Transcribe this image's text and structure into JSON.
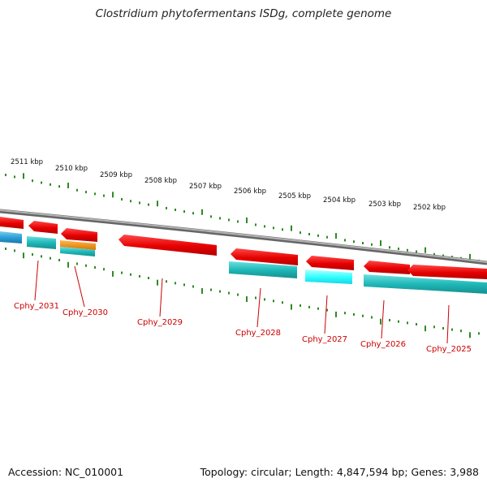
{
  "title": "Clostridium phytofermentans ISDg, complete genome",
  "footer": {
    "accession": "Accession: NC_010001",
    "summary": "Topology: circular; Length: 4,847,594 bp; Genes: 3,988"
  },
  "ruler": {
    "labels": [
      "2511 kbp",
      "2510 kbp",
      "2509 kbp",
      "2508 kbp",
      "2507 kbp",
      "2506 kbp",
      "2505 kbp",
      "2504 kbp",
      "2503 kbp",
      "2502 kbp"
    ],
    "tick_color": "#2e8b23"
  },
  "backbone_color": "#8c8c8c",
  "gene_labels": [
    "Cphy_2031",
    "Cphy_2030",
    "Cphy_2029",
    "Cphy_2028",
    "Cphy_2027",
    "Cphy_2026",
    "Cphy_2025"
  ],
  "feature_colors": {
    "cds": "#e60000",
    "gene_teal": "#1fb8b8",
    "gene_cyan": "#33ffff",
    "gene_blue": "#2a9fd8",
    "rna_orange": "#f08a00",
    "label_color": "#cc0000"
  }
}
